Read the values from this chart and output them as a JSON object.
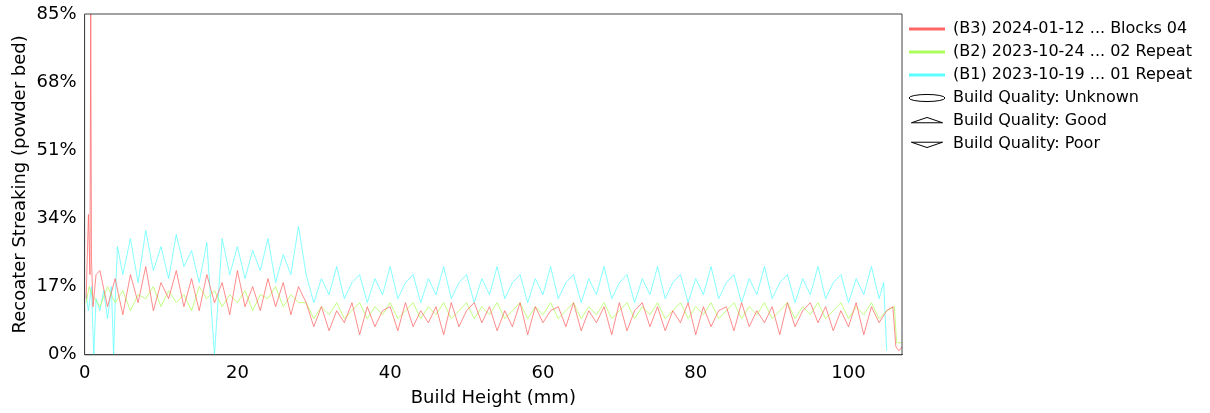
{
  "chart_data": {
    "type": "line",
    "xlabel": "Build Height (mm)",
    "ylabel": "Recoater Streaking (powder bed)",
    "xlim": [
      0,
      107
    ],
    "xticks": [
      0,
      20,
      40,
      60,
      80,
      100
    ],
    "ylim": [
      0,
      85
    ],
    "yticks": [
      {
        "value": 0,
        "label": "0%"
      },
      {
        "value": 17,
        "label": "17%"
      },
      {
        "value": 34,
        "label": "34%"
      },
      {
        "value": 51,
        "label": "51%"
      },
      {
        "value": 68,
        "label": "68%"
      },
      {
        "value": 85,
        "label": "85%"
      }
    ],
    "grid": false,
    "legend": "right",
    "line_style": "solid",
    "series": [
      {
        "name": "(B3) 2024-01-12 ... Blocks 04",
        "color": "#ff6666",
        "x": [
          0.2,
          0.5,
          0.7,
          0.8,
          0.9,
          1.1,
          1.5,
          2,
          3,
          4,
          5,
          6,
          7,
          8,
          9,
          10,
          11,
          12,
          13,
          14,
          15,
          16,
          17,
          18,
          19,
          20,
          21,
          22,
          23,
          24,
          25,
          26,
          27,
          28,
          29,
          30,
          31,
          32,
          33,
          34,
          35,
          36,
          37,
          38,
          39,
          40,
          41,
          42,
          43,
          44,
          45,
          46,
          47,
          48,
          49,
          50,
          51,
          52,
          53,
          54,
          55,
          56,
          57,
          58,
          59,
          60,
          61,
          62,
          63,
          64,
          65,
          66,
          67,
          68,
          69,
          70,
          71,
          72,
          73,
          74,
          75,
          76,
          77,
          78,
          79,
          80,
          81,
          82,
          83,
          84,
          85,
          86,
          87,
          88,
          89,
          90,
          91,
          92,
          93,
          94,
          95,
          96,
          97,
          98,
          99,
          100,
          101,
          102,
          103,
          104,
          105,
          105.8,
          106.2,
          106.6,
          107
        ],
        "values": [
          14,
          35,
          20,
          85,
          24,
          12,
          20,
          21,
          12,
          19,
          10,
          20,
          13,
          22,
          11,
          18,
          14,
          21,
          12,
          19,
          11,
          20,
          13,
          18,
          10,
          21,
          12,
          17,
          11,
          19,
          12,
          18,
          10,
          17,
          13,
          7,
          12,
          6,
          11,
          8,
          13,
          5,
          12,
          7,
          11,
          12,
          6,
          13,
          7,
          11,
          8,
          12,
          5,
          13,
          7,
          11,
          13,
          8,
          12,
          6,
          11,
          7,
          13,
          5,
          12,
          8,
          11,
          12,
          7,
          13,
          6,
          11,
          8,
          12,
          5,
          13,
          6,
          11,
          13,
          7,
          12,
          6,
          11,
          8,
          13,
          5,
          12,
          7,
          11,
          12,
          6,
          13,
          7,
          11,
          8,
          12,
          5,
          13,
          7,
          11,
          13,
          8,
          12,
          6,
          11,
          7,
          13,
          5,
          12,
          8,
          11,
          12,
          2,
          1,
          2
        ]
      },
      {
        "name": "(B2) 2023-10-24 ... 02 Repeat",
        "color": "#adff5c",
        "x": [
          0.2,
          0.6,
          1,
          2,
          3,
          4,
          5,
          6,
          7,
          8,
          9,
          10,
          11,
          12,
          13,
          14,
          15,
          16,
          17,
          18,
          19,
          20,
          21,
          22,
          23,
          24,
          25,
          26,
          27,
          28,
          29,
          30,
          31,
          32,
          33,
          34,
          35,
          36,
          37,
          38,
          39,
          40,
          41,
          42,
          43,
          44,
          45,
          46,
          47,
          48,
          49,
          50,
          51,
          52,
          53,
          54,
          55,
          56,
          57,
          58,
          59,
          60,
          61,
          62,
          63,
          64,
          65,
          66,
          67,
          68,
          69,
          70,
          71,
          72,
          73,
          74,
          75,
          76,
          77,
          78,
          79,
          80,
          81,
          82,
          83,
          84,
          85,
          86,
          87,
          88,
          89,
          90,
          91,
          92,
          93,
          94,
          95,
          96,
          97,
          98,
          99,
          100,
          101,
          102,
          103,
          104,
          105,
          106,
          106.3,
          107
        ],
        "values": [
          13,
          17,
          15,
          12,
          17,
          13,
          16,
          11,
          15,
          14,
          17,
          12,
          16,
          13,
          15,
          11,
          17,
          14,
          16,
          12,
          15,
          13,
          16,
          11,
          15,
          14,
          17,
          12,
          15,
          13,
          13,
          9,
          12,
          10,
          13,
          9,
          11,
          13,
          9,
          12,
          10,
          13,
          9,
          11,
          13,
          9,
          12,
          10,
          13,
          9,
          11,
          13,
          9,
          12,
          10,
          13,
          9,
          11,
          13,
          9,
          12,
          10,
          13,
          9,
          11,
          13,
          9,
          12,
          10,
          13,
          9,
          11,
          13,
          9,
          12,
          10,
          13,
          9,
          11,
          13,
          9,
          12,
          10,
          13,
          9,
          11,
          13,
          9,
          12,
          10,
          13,
          9,
          11,
          13,
          9,
          12,
          10,
          13,
          9,
          11,
          13,
          9,
          12,
          10,
          13,
          9,
          11,
          12,
          3,
          3
        ]
      },
      {
        "name": "(B1) 2023-10-19 ... 01 Repeat",
        "color": "#5cffff",
        "x": [
          0.2,
          0.5,
          0.9,
          1.2,
          1.5,
          2,
          2.5,
          3,
          3.5,
          3.8,
          4,
          4.3,
          5,
          6,
          7,
          8,
          9,
          10,
          11,
          12,
          13,
          14,
          15,
          16,
          17,
          18,
          19,
          20,
          21,
          22,
          23,
          24,
          25,
          26,
          27,
          28,
          29,
          30,
          31,
          32,
          33,
          34,
          35,
          36,
          37,
          38,
          39,
          40,
          41,
          42,
          43,
          44,
          45,
          46,
          47,
          48,
          49,
          50,
          51,
          52,
          53,
          54,
          55,
          56,
          57,
          58,
          59,
          60,
          61,
          62,
          63,
          64,
          65,
          66,
          67,
          68,
          69,
          70,
          71,
          72,
          73,
          74,
          75,
          76,
          77,
          78,
          79,
          80,
          81,
          82,
          83,
          84,
          85,
          86,
          87,
          88,
          89,
          90,
          91,
          92,
          93,
          94,
          95,
          96,
          97,
          98,
          99,
          100,
          101,
          102,
          103,
          104,
          104.6,
          105
        ],
        "values": [
          15,
          11,
          17,
          0,
          14,
          11,
          16,
          9,
          17,
          0,
          13,
          27,
          20,
          29,
          18,
          31,
          21,
          27,
          19,
          30,
          22,
          26,
          18,
          28,
          0,
          29,
          20,
          27,
          19,
          26,
          21,
          29,
          18,
          25,
          20,
          32,
          20,
          13,
          19,
          15,
          22,
          14,
          18,
          20,
          13,
          19,
          15,
          22,
          14,
          18,
          20,
          13,
          19,
          15,
          22,
          14,
          18,
          20,
          13,
          19,
          15,
          22,
          14,
          18,
          20,
          13,
          19,
          15,
          22,
          14,
          18,
          20,
          13,
          19,
          15,
          22,
          14,
          18,
          20,
          13,
          19,
          15,
          22,
          14,
          18,
          20,
          13,
          19,
          15,
          22,
          14,
          18,
          20,
          13,
          19,
          15,
          22,
          14,
          18,
          20,
          13,
          19,
          15,
          22,
          14,
          18,
          20,
          13,
          19,
          15,
          22,
          14,
          18,
          1
        ]
      },
      {
        "name": "Build Quality: Unknown",
        "type": "scatter",
        "marker": "circle",
        "color": "#000000"
      },
      {
        "name": "Build Quality: Good",
        "type": "scatter",
        "marker": "triangle",
        "color": "#000000"
      },
      {
        "name": "Build Quality: Poor",
        "type": "scatter",
        "marker": "triangle-down",
        "color": "#000000"
      }
    ]
  }
}
